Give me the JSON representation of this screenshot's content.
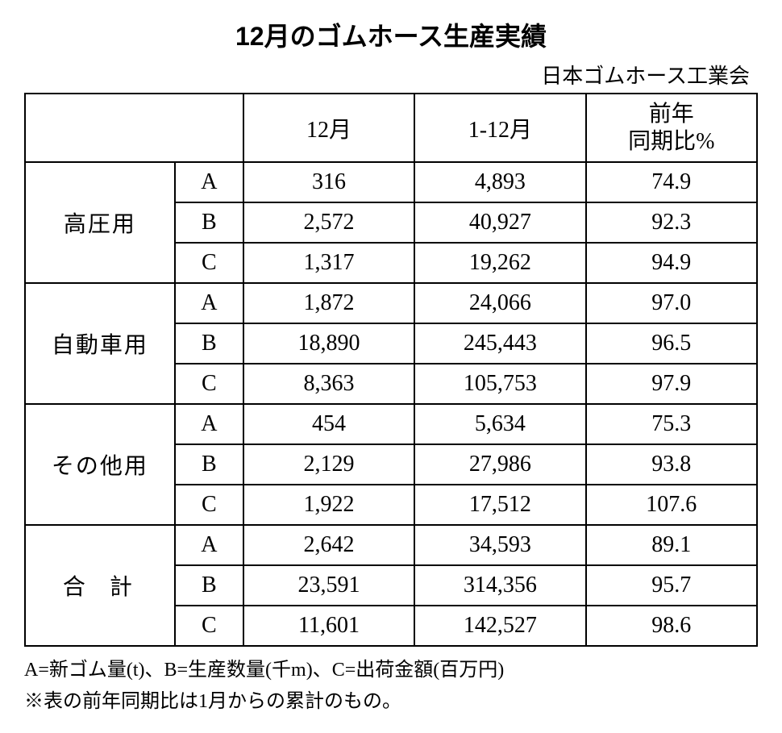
{
  "title": "12月のゴムホース生産実績",
  "subtitle": "日本ゴムホース工業会",
  "headers": {
    "col1": "",
    "col2": "",
    "month": "12月",
    "cumulative": "1-12月",
    "yoy_line1": "前年",
    "yoy_line2": "同期比%"
  },
  "categories": [
    {
      "name": "高圧用",
      "rows": [
        {
          "sub": "A",
          "month": "316",
          "cumulative": "4,893",
          "yoy": "74.9"
        },
        {
          "sub": "B",
          "month": "2,572",
          "cumulative": "40,927",
          "yoy": "92.3"
        },
        {
          "sub": "C",
          "month": "1,317",
          "cumulative": "19,262",
          "yoy": "94.9"
        }
      ]
    },
    {
      "name": "自動車用",
      "rows": [
        {
          "sub": "A",
          "month": "1,872",
          "cumulative": "24,066",
          "yoy": "97.0"
        },
        {
          "sub": "B",
          "month": "18,890",
          "cumulative": "245,443",
          "yoy": "96.5"
        },
        {
          "sub": "C",
          "month": "8,363",
          "cumulative": "105,753",
          "yoy": "97.9"
        }
      ]
    },
    {
      "name": "その他用",
      "rows": [
        {
          "sub": "A",
          "month": "454",
          "cumulative": "5,634",
          "yoy": "75.3"
        },
        {
          "sub": "B",
          "month": "2,129",
          "cumulative": "27,986",
          "yoy": "93.8"
        },
        {
          "sub": "C",
          "month": "1,922",
          "cumulative": "17,512",
          "yoy": "107.6"
        }
      ]
    },
    {
      "name": "合計",
      "rows": [
        {
          "sub": "A",
          "month": "2,642",
          "cumulative": "34,593",
          "yoy": "89.1"
        },
        {
          "sub": "B",
          "month": "23,591",
          "cumulative": "314,356",
          "yoy": "95.7"
        },
        {
          "sub": "C",
          "month": "11,601",
          "cumulative": "142,527",
          "yoy": "98.6"
        }
      ]
    }
  ],
  "notes": {
    "legend": "A=新ゴム量(t)、B=生産数量(千m)、C=出荷金額(百万円)",
    "remark": "※表の前年同期比は1月からの累計のもの。"
  },
  "style": {
    "font_family_title": "sans-serif",
    "font_family_body": "serif",
    "title_fontsize": 32,
    "body_fontsize": 28,
    "notes_fontsize": 24,
    "border_color": "#000000",
    "background_color": "#ffffff",
    "text_color": "#000000"
  }
}
